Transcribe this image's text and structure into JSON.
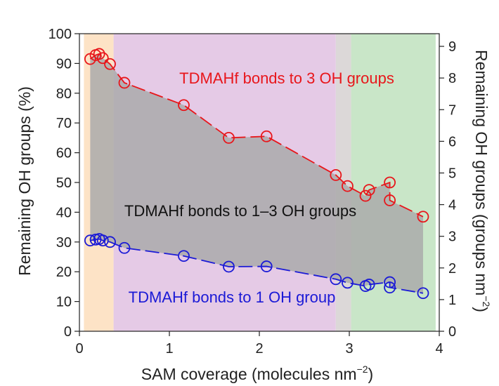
{
  "chart_data": {
    "type": "line",
    "title": "",
    "xlabel": "SAM coverage (molecules nm",
    "xlabel_sup": "−2",
    "xlabel_end": ")",
    "ylabel": "Remaining OH groups (%)",
    "y2label": "Remaining OH groups (groups nm",
    "y2label_sup": "−2",
    "y2label_end": ")",
    "xlim": [
      0,
      4
    ],
    "ylim": [
      0,
      100
    ],
    "y2lim": [
      0,
      9.4
    ],
    "xticks": [
      0,
      1,
      2,
      3,
      4
    ],
    "yticks": [
      0,
      10,
      20,
      30,
      40,
      50,
      60,
      70,
      80,
      90,
      100
    ],
    "y2ticks": [
      0,
      1,
      2,
      3,
      4,
      5,
      6,
      7,
      8,
      9
    ],
    "background_bands": [
      {
        "x0": 0.05,
        "x1": 0.38,
        "color": "#fde3c6"
      },
      {
        "x0": 0.38,
        "x1": 2.85,
        "color": "#e5cae6"
      },
      {
        "x0": 2.85,
        "x1": 3.02,
        "color": "#dcd8d8"
      },
      {
        "x0": 3.02,
        "x1": 3.96,
        "color": "#c9e6c8"
      }
    ],
    "fill_between": {
      "x_start": 0.12,
      "x_end": 3.82,
      "color": "#aaaaaa"
    },
    "series": [
      {
        "name": "TDMAHf bonds to 3 OH groups",
        "color": "#e8161b",
        "x": [
          0.12,
          0.18,
          0.22,
          0.26,
          0.34,
          0.5,
          1.16,
          1.66,
          2.08,
          2.85,
          2.98,
          3.18,
          3.22,
          3.45,
          3.45,
          3.82
        ],
        "y": [
          91.5,
          92.8,
          93.2,
          91.8,
          89.8,
          83.5,
          76,
          65,
          65.5,
          52.5,
          48.8,
          45.5,
          47.5,
          50,
          44,
          38.5
        ]
      },
      {
        "name": "TDMAHf bonds to 1 OH group",
        "color": "#1b1ad6",
        "x": [
          0.12,
          0.18,
          0.22,
          0.26,
          0.34,
          0.5,
          1.16,
          1.66,
          2.08,
          2.85,
          2.98,
          3.18,
          3.22,
          3.45,
          3.45,
          3.82
        ],
        "y": [
          30.5,
          30.8,
          31,
          30.5,
          30,
          28,
          25.3,
          21.7,
          21.8,
          17.5,
          16.3,
          15.2,
          15.7,
          16.5,
          14.7,
          12.8
        ]
      }
    ],
    "annotations": [
      {
        "text": "TDMAHf bonds to 3 OH groups",
        "color": "#e8161b"
      },
      {
        "text": "TDMAHf bonds to 1–3 OH groups",
        "color": "#111111"
      },
      {
        "text": "TDMAHf bonds to 1 OH group",
        "color": "#1b1ad6"
      }
    ]
  }
}
